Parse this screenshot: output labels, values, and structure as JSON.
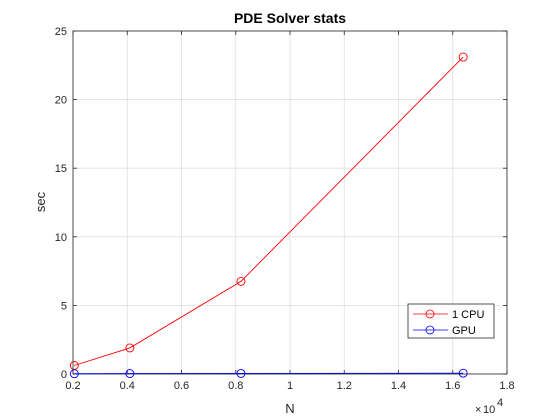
{
  "chart_data": {
    "type": "line",
    "title": "PDE Solver stats",
    "xlabel": "N",
    "ylabel": "sec",
    "x_exponent": "10",
    "x_exponent_power": "4",
    "xlim": [
      0.2,
      1.8
    ],
    "ylim": [
      0,
      25
    ],
    "xticks": [
      "0.2",
      "0.4",
      "0.6",
      "0.8",
      "1",
      "1.2",
      "1.4",
      "1.6",
      "1.8"
    ],
    "yticks": [
      "0",
      "5",
      "10",
      "15",
      "20",
      "25"
    ],
    "grid": true,
    "legend_position": "bottom-right",
    "series": [
      {
        "name": "1 CPU",
        "color": "#ff0000",
        "x": [
          0.2048,
          0.4096,
          0.8192,
          1.6384
        ],
        "y": [
          0.62,
          1.9,
          6.75,
          23.1
        ],
        "marker": "circle"
      },
      {
        "name": "GPU",
        "color": "#0000ff",
        "x": [
          0.2048,
          0.4096,
          0.8192,
          1.6384
        ],
        "y": [
          0.02,
          0.03,
          0.04,
          0.06
        ],
        "marker": "circle"
      }
    ]
  }
}
